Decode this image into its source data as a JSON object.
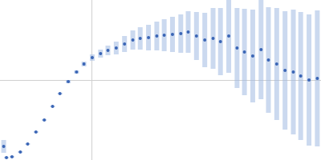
{
  "chart_data": {
    "type": "scatter",
    "color": "#3a65b5",
    "marker": "circle",
    "grid": true,
    "tick_labels": false,
    "xlim": [
      0,
      3.48
    ],
    "xticks": [
      1
    ],
    "ylim": [
      0,
      2
    ],
    "yticks": [
      1
    ],
    "x": [
      0.04,
      0.07,
      0.13,
      0.22,
      0.3,
      0.39,
      0.48,
      0.57,
      0.65,
      0.74,
      0.83,
      0.91,
      1.0,
      1.09,
      1.17,
      1.26,
      1.35,
      1.44,
      1.52,
      1.61,
      1.7,
      1.78,
      1.87,
      1.96,
      2.04,
      2.13,
      2.22,
      2.31,
      2.39,
      2.48,
      2.57,
      2.65,
      2.74,
      2.83,
      2.91,
      3.0,
      3.09,
      3.18,
      3.26,
      3.35,
      3.44
    ],
    "values": [
      0.17,
      0.03,
      0.04,
      0.1,
      0.2,
      0.35,
      0.5,
      0.67,
      0.83,
      0.98,
      1.1,
      1.2,
      1.28,
      1.33,
      1.37,
      1.4,
      1.45,
      1.5,
      1.52,
      1.53,
      1.55,
      1.56,
      1.57,
      1.58,
      1.6,
      1.55,
      1.5,
      1.52,
      1.48,
      1.55,
      1.4,
      1.35,
      1.3,
      1.38,
      1.25,
      1.2,
      1.12,
      1.1,
      1.05,
      1.0,
      1.02
    ],
    "error": [
      0.08,
      0.01,
      0.01,
      0.01,
      0.01,
      0.01,
      0.01,
      0.01,
      0.01,
      0.02,
      0.02,
      0.03,
      0.04,
      0.05,
      0.06,
      0.08,
      0.1,
      0.12,
      0.14,
      0.16,
      0.18,
      0.2,
      0.22,
      0.24,
      0.26,
      0.3,
      0.34,
      0.38,
      0.42,
      0.46,
      0.5,
      0.54,
      0.58,
      0.62,
      0.66,
      0.7,
      0.74,
      0.78,
      0.8,
      0.82,
      0.85
    ]
  }
}
